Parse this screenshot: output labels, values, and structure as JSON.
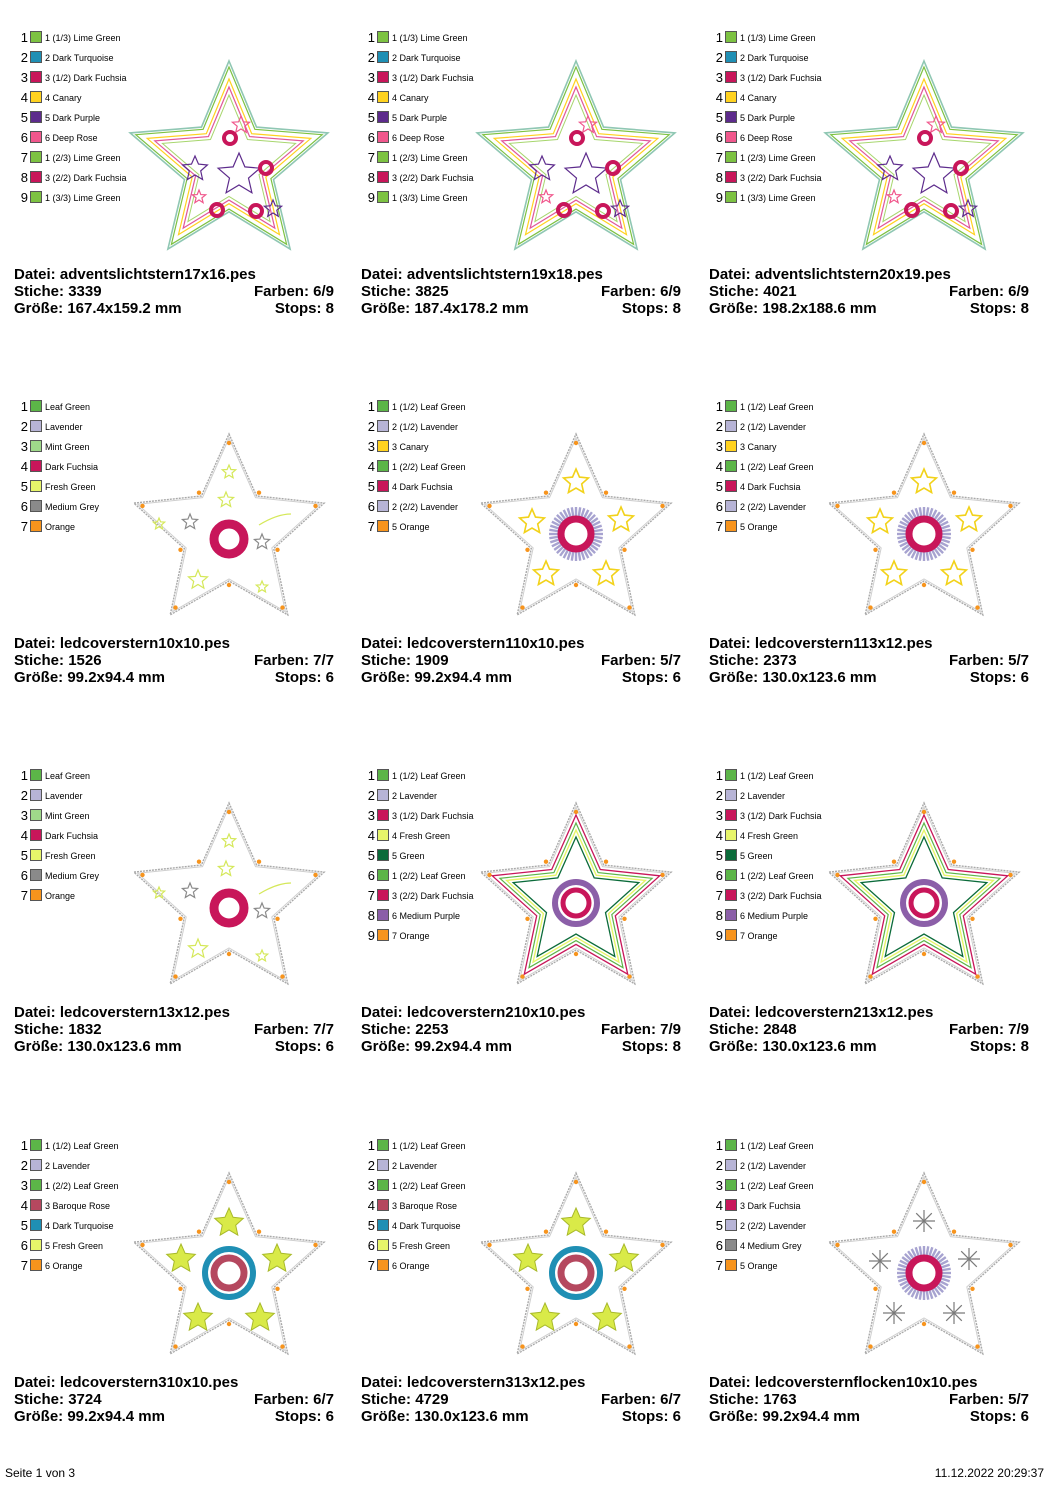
{
  "labels": {
    "file": "Datei:",
    "stitches": "Stiche:",
    "colors": "Farben:",
    "size": "Größe:",
    "stops": "Stops:"
  },
  "footer": {
    "page": "Seite 1 von 3",
    "datetime": "11.12.2022 20:29:37"
  },
  "designs": [
    {
      "file": "adventslichtstern17x16.pes",
      "stitches": "3339",
      "colors": "6/9",
      "size": "167.4x159.2 mm",
      "stops": "8",
      "kind": "advent",
      "threads": [
        {
          "num": "1",
          "name": "1 (1/3) Lime Green",
          "color": "#7dc242"
        },
        {
          "num": "2",
          "name": "2 Dark Turquoise",
          "color": "#1f8fb4"
        },
        {
          "num": "3",
          "name": "3 (1/2) Dark Fuchsia",
          "color": "#c8165a"
        },
        {
          "num": "4",
          "name": "4 Canary",
          "color": "#ffd21f"
        },
        {
          "num": "5",
          "name": "5 Dark Purple",
          "color": "#5d2b8c"
        },
        {
          "num": "6",
          "name": "6 Deep Rose",
          "color": "#f0578c"
        },
        {
          "num": "7",
          "name": "1 (2/3) Lime Green",
          "color": "#7dc242"
        },
        {
          "num": "8",
          "name": "3 (2/2) Dark Fuchsia",
          "color": "#c8165a"
        },
        {
          "num": "9",
          "name": "1 (3/3) Lime Green",
          "color": "#7dc242"
        }
      ]
    },
    {
      "file": "adventslichtstern19x18.pes",
      "stitches": "3825",
      "colors": "6/9",
      "size": "187.4x178.2 mm",
      "stops": "8",
      "kind": "advent",
      "threads": [
        {
          "num": "1",
          "name": "1 (1/3) Lime Green",
          "color": "#7dc242"
        },
        {
          "num": "2",
          "name": "2 Dark Turquoise",
          "color": "#1f8fb4"
        },
        {
          "num": "3",
          "name": "3 (1/2) Dark Fuchsia",
          "color": "#c8165a"
        },
        {
          "num": "4",
          "name": "4 Canary",
          "color": "#ffd21f"
        },
        {
          "num": "5",
          "name": "5 Dark Purple",
          "color": "#5d2b8c"
        },
        {
          "num": "6",
          "name": "6 Deep Rose",
          "color": "#f0578c"
        },
        {
          "num": "7",
          "name": "1 (2/3) Lime Green",
          "color": "#7dc242"
        },
        {
          "num": "8",
          "name": "3 (2/2) Dark Fuchsia",
          "color": "#c8165a"
        },
        {
          "num": "9",
          "name": "1 (3/3) Lime Green",
          "color": "#7dc242"
        }
      ]
    },
    {
      "file": "adventslichtstern20x19.pes",
      "stitches": "4021",
      "colors": "6/9",
      "size": "198.2x188.6 mm",
      "stops": "8",
      "kind": "advent",
      "threads": [
        {
          "num": "1",
          "name": "1 (1/3) Lime Green",
          "color": "#7dc242"
        },
        {
          "num": "2",
          "name": "2 Dark Turquoise",
          "color": "#1f8fb4"
        },
        {
          "num": "3",
          "name": "3 (1/2) Dark Fuchsia",
          "color": "#c8165a"
        },
        {
          "num": "4",
          "name": "4 Canary",
          "color": "#ffd21f"
        },
        {
          "num": "5",
          "name": "5 Dark Purple",
          "color": "#5d2b8c"
        },
        {
          "num": "6",
          "name": "6 Deep Rose",
          "color": "#f0578c"
        },
        {
          "num": "7",
          "name": "1 (2/3) Lime Green",
          "color": "#7dc242"
        },
        {
          "num": "8",
          "name": "3 (2/2) Dark Fuchsia",
          "color": "#c8165a"
        },
        {
          "num": "9",
          "name": "1 (3/3) Lime Green",
          "color": "#7dc242"
        }
      ]
    },
    {
      "file": "ledcoverstern10x10.pes",
      "stitches": "1526",
      "colors": "7/7",
      "size": "99.2x94.4 mm",
      "stops": "6",
      "kind": "led1",
      "threads": [
        {
          "num": "1",
          "name": "Leaf Green",
          "color": "#5cb548"
        },
        {
          "num": "2",
          "name": "Lavender",
          "color": "#b7b4d6"
        },
        {
          "num": "3",
          "name": "Mint Green",
          "color": "#9fd98a"
        },
        {
          "num": "4",
          "name": "Dark Fuchsia",
          "color": "#c8165a"
        },
        {
          "num": "5",
          "name": "Fresh Green",
          "color": "#e7f56a"
        },
        {
          "num": "6",
          "name": "Medium Grey",
          "color": "#8a8a8a"
        },
        {
          "num": "7",
          "name": "Orange",
          "color": "#f7941d"
        }
      ]
    },
    {
      "file": "ledcoverstern110x10.pes",
      "stitches": "1909",
      "colors": "5/7",
      "size": "99.2x94.4 mm",
      "stops": "6",
      "kind": "fringe",
      "threads": [
        {
          "num": "1",
          "name": "1 (1/2) Leaf Green",
          "color": "#5cb548"
        },
        {
          "num": "2",
          "name": "2 (1/2) Lavender",
          "color": "#b7b4d6"
        },
        {
          "num": "3",
          "name": "3 Canary",
          "color": "#ffd21f"
        },
        {
          "num": "4",
          "name": "1 (2/2) Leaf Green",
          "color": "#5cb548"
        },
        {
          "num": "5",
          "name": "4 Dark Fuchsia",
          "color": "#c8165a"
        },
        {
          "num": "6",
          "name": "2 (2/2) Lavender",
          "color": "#b7b4d6"
        },
        {
          "num": "7",
          "name": "5 Orange",
          "color": "#f7941d"
        }
      ]
    },
    {
      "file": "ledcoverstern113x12.pes",
      "stitches": "2373",
      "colors": "5/7",
      "size": "130.0x123.6 mm",
      "stops": "6",
      "kind": "fringe",
      "threads": [
        {
          "num": "1",
          "name": "1 (1/2) Leaf Green",
          "color": "#5cb548"
        },
        {
          "num": "2",
          "name": "2 (1/2) Lavender",
          "color": "#b7b4d6"
        },
        {
          "num": "3",
          "name": "3 Canary",
          "color": "#ffd21f"
        },
        {
          "num": "4",
          "name": "1 (2/2) Leaf Green",
          "color": "#5cb548"
        },
        {
          "num": "5",
          "name": "4 Dark Fuchsia",
          "color": "#c8165a"
        },
        {
          "num": "6",
          "name": "2 (2/2) Lavender",
          "color": "#b7b4d6"
        },
        {
          "num": "7",
          "name": "5 Orange",
          "color": "#f7941d"
        }
      ]
    },
    {
      "file": "ledcoverstern13x12.pes",
      "stitches": "1832",
      "colors": "7/7",
      "size": "130.0x123.6 mm",
      "stops": "6",
      "kind": "led1",
      "threads": [
        {
          "num": "1",
          "name": "Leaf Green",
          "color": "#5cb548"
        },
        {
          "num": "2",
          "name": "Lavender",
          "color": "#b7b4d6"
        },
        {
          "num": "3",
          "name": "Mint Green",
          "color": "#9fd98a"
        },
        {
          "num": "4",
          "name": "Dark Fuchsia",
          "color": "#c8165a"
        },
        {
          "num": "5",
          "name": "Fresh Green",
          "color": "#e7f56a"
        },
        {
          "num": "6",
          "name": "Medium Grey",
          "color": "#8a8a8a"
        },
        {
          "num": "7",
          "name": "Orange",
          "color": "#f7941d"
        }
      ]
    },
    {
      "file": "ledcoverstern210x10.pes",
      "stitches": "2253",
      "colors": "7/9",
      "size": "99.2x94.4 mm",
      "stops": "8",
      "kind": "outline",
      "threads": [
        {
          "num": "1",
          "name": "1 (1/2) Leaf Green",
          "color": "#5cb548"
        },
        {
          "num": "2",
          "name": "2 Lavender",
          "color": "#b7b4d6"
        },
        {
          "num": "3",
          "name": "3 (1/2) Dark Fuchsia",
          "color": "#c8165a"
        },
        {
          "num": "4",
          "name": "4 Fresh Green",
          "color": "#e7f56a"
        },
        {
          "num": "5",
          "name": "5 Green",
          "color": "#0b6b3a"
        },
        {
          "num": "6",
          "name": "1 (2/2) Leaf Green",
          "color": "#5cb548"
        },
        {
          "num": "7",
          "name": "3 (2/2) Dark Fuchsia",
          "color": "#c8165a"
        },
        {
          "num": "8",
          "name": "6 Medium Purple",
          "color": "#8b5fa8"
        },
        {
          "num": "9",
          "name": "7 Orange",
          "color": "#f7941d"
        }
      ]
    },
    {
      "file": "ledcoverstern213x12.pes",
      "stitches": "2848",
      "colors": "7/9",
      "size": "130.0x123.6 mm",
      "stops": "8",
      "kind": "outline",
      "threads": [
        {
          "num": "1",
          "name": "1 (1/2) Leaf Green",
          "color": "#5cb548"
        },
        {
          "num": "2",
          "name": "2 Lavender",
          "color": "#b7b4d6"
        },
        {
          "num": "3",
          "name": "3 (1/2) Dark Fuchsia",
          "color": "#c8165a"
        },
        {
          "num": "4",
          "name": "4 Fresh Green",
          "color": "#e7f56a"
        },
        {
          "num": "5",
          "name": "5 Green",
          "color": "#0b6b3a"
        },
        {
          "num": "6",
          "name": "1 (2/2) Leaf Green",
          "color": "#5cb548"
        },
        {
          "num": "7",
          "name": "3 (2/2) Dark Fuchsia",
          "color": "#c8165a"
        },
        {
          "num": "8",
          "name": "6 Medium Purple",
          "color": "#8b5fa8"
        },
        {
          "num": "9",
          "name": "7 Orange",
          "color": "#f7941d"
        }
      ]
    },
    {
      "file": "ledcoverstern310x10.pes",
      "stitches": "3724",
      "colors": "6/7",
      "size": "99.2x94.4 mm",
      "stops": "6",
      "kind": "stars",
      "threads": [
        {
          "num": "1",
          "name": "1 (1/2) Leaf Green",
          "color": "#5cb548"
        },
        {
          "num": "2",
          "name": "2 Lavender",
          "color": "#b7b4d6"
        },
        {
          "num": "3",
          "name": "1 (2/2) Leaf Green",
          "color": "#5cb548"
        },
        {
          "num": "4",
          "name": "3 Baroque Rose",
          "color": "#b5485f"
        },
        {
          "num": "5",
          "name": "4 Dark Turquoise",
          "color": "#1f8fb4"
        },
        {
          "num": "6",
          "name": "5 Fresh Green",
          "color": "#e7f56a"
        },
        {
          "num": "7",
          "name": "6 Orange",
          "color": "#f7941d"
        }
      ]
    },
    {
      "file": "ledcoverstern313x12.pes",
      "stitches": "4729",
      "colors": "6/7",
      "size": "130.0x123.6 mm",
      "stops": "6",
      "kind": "stars",
      "threads": [
        {
          "num": "1",
          "name": "1 (1/2) Leaf Green",
          "color": "#5cb548"
        },
        {
          "num": "2",
          "name": "2 Lavender",
          "color": "#b7b4d6"
        },
        {
          "num": "3",
          "name": "1 (2/2) Leaf Green",
          "color": "#5cb548"
        },
        {
          "num": "4",
          "name": "3 Baroque Rose",
          "color": "#b5485f"
        },
        {
          "num": "5",
          "name": "4 Dark Turquoise",
          "color": "#1f8fb4"
        },
        {
          "num": "6",
          "name": "5 Fresh Green",
          "color": "#e7f56a"
        },
        {
          "num": "7",
          "name": "6 Orange",
          "color": "#f7941d"
        }
      ]
    },
    {
      "file": "ledcoversternflocken10x10.pes",
      "stitches": "1763",
      "colors": "5/7",
      "size": "99.2x94.4 mm",
      "stops": "6",
      "kind": "flakes",
      "threads": [
        {
          "num": "1",
          "name": "1 (1/2) Leaf Green",
          "color": "#5cb548"
        },
        {
          "num": "2",
          "name": "2 (1/2) Lavender",
          "color": "#b7b4d6"
        },
        {
          "num": "3",
          "name": "1 (2/2) Leaf Green",
          "color": "#5cb548"
        },
        {
          "num": "4",
          "name": "3 Dark Fuchsia",
          "color": "#c8165a"
        },
        {
          "num": "5",
          "name": "2 (2/2) Lavender",
          "color": "#b7b4d6"
        },
        {
          "num": "6",
          "name": "4 Medium Grey",
          "color": "#8a8a8a"
        },
        {
          "num": "7",
          "name": "5 Orange",
          "color": "#f7941d"
        }
      ]
    }
  ]
}
